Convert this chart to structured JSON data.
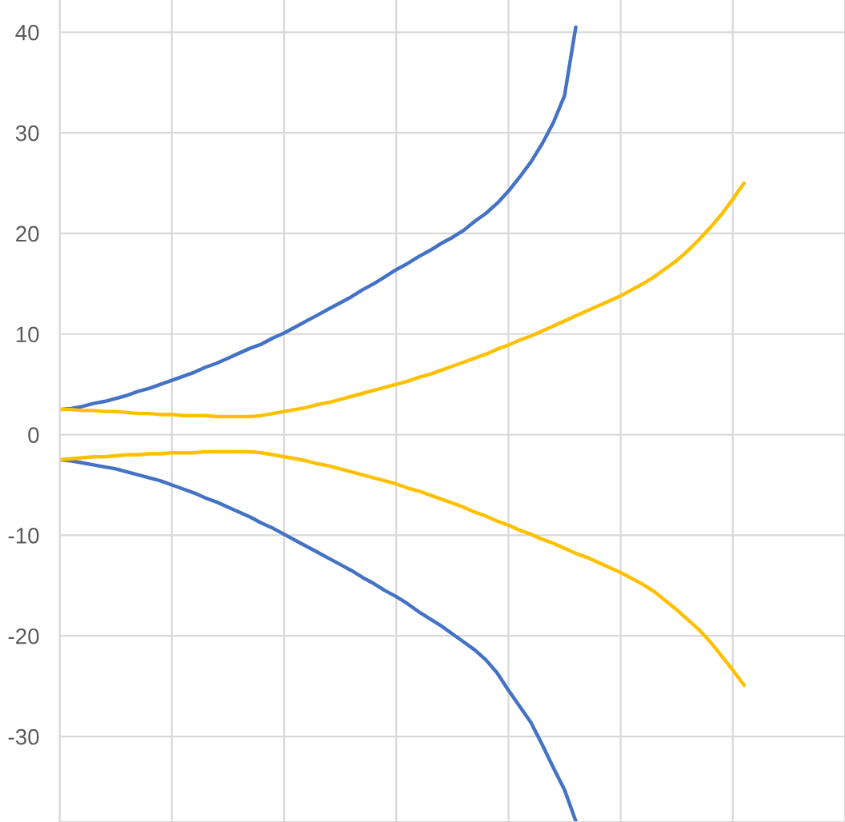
{
  "chart_data": {
    "type": "line",
    "categories": [
      null,
      null,
      null,
      null,
      null,
      null,
      null,
      null,
      null,
      null,
      null,
      null,
      null,
      null,
      null,
      null,
      null,
      null,
      null,
      null,
      null,
      null,
      null,
      null,
      null,
      null,
      null,
      null,
      null,
      null,
      null,
      null,
      null,
      null,
      null,
      null,
      null,
      null,
      null,
      null,
      null,
      null,
      null,
      null,
      null,
      null,
      null,
      null,
      null,
      null,
      null,
      null,
      null,
      null,
      null,
      null,
      null,
      null,
      null,
      null,
      null,
      null,
      null,
      null,
      null,
      null,
      null,
      null,
      null,
      null,
      null
    ],
    "series": [
      {
        "color": "#4472c4",
        "values": [
          2.5,
          2.6,
          2.8,
          3.1,
          3.3,
          3.6,
          3.9,
          4.3,
          4.6,
          5.0,
          5.4,
          5.8,
          6.2,
          6.7,
          7.1,
          7.6,
          8.1,
          8.6,
          9.0,
          9.6,
          10.1,
          10.7,
          11.3,
          11.9,
          12.5,
          13.1,
          13.7,
          14.4,
          15.0,
          15.7,
          16.4,
          17.0,
          17.7,
          18.3,
          19.0,
          19.6,
          20.3,
          21.2,
          22.0,
          23.0,
          24.2,
          25.6,
          27.1,
          28.9,
          31.0,
          33.7,
          40.5,
          null,
          null,
          null,
          null,
          null,
          null,
          null,
          null,
          null,
          null,
          null,
          null,
          null,
          null,
          null,
          null,
          null,
          null,
          null,
          null,
          null,
          null,
          null,
          null
        ]
      },
      {
        "color": "#4472c4",
        "values": [
          -2.5,
          -2.6,
          -2.8,
          -3.0,
          -3.2,
          -3.4,
          -3.7,
          -4.0,
          -4.3,
          -4.6,
          -5.0,
          -5.4,
          -5.8,
          -6.3,
          -6.7,
          -7.2,
          -7.7,
          -8.2,
          -8.8,
          -9.3,
          -9.9,
          -10.5,
          -11.1,
          -11.7,
          -12.3,
          -12.9,
          -13.5,
          -14.2,
          -14.8,
          -15.5,
          -16.1,
          -16.8,
          -17.6,
          -18.3,
          -19.0,
          -19.8,
          -20.6,
          -21.4,
          -22.4,
          -23.7,
          -25.4,
          -27.0,
          -28.6,
          -30.8,
          -33.1,
          -35.3,
          -38.4,
          null,
          null,
          null,
          null,
          null,
          null,
          null,
          null,
          null,
          null,
          null,
          null,
          null,
          null,
          null,
          null,
          null,
          null,
          null,
          null,
          null,
          null,
          null,
          null
        ]
      },
      {
        "color": "#ffc000",
        "values": [
          2.5,
          2.5,
          2.4,
          2.4,
          2.3,
          2.3,
          2.2,
          2.1,
          2.1,
          2.0,
          2.0,
          1.9,
          1.9,
          1.9,
          1.8,
          1.8,
          1.8,
          1.8,
          1.9,
          2.1,
          2.3,
          2.5,
          2.7,
          3.0,
          3.2,
          3.5,
          3.8,
          4.1,
          4.4,
          4.7,
          5.0,
          5.3,
          5.7,
          6.0,
          6.4,
          6.8,
          7.2,
          7.6,
          8.0,
          8.5,
          8.9,
          9.4,
          9.8,
          10.3,
          10.8,
          11.3,
          11.8,
          12.3,
          12.8,
          13.3,
          13.8,
          14.4,
          15.0,
          15.7,
          16.5,
          17.3,
          18.3,
          19.4,
          20.6,
          21.9,
          23.4,
          25.0,
          null,
          null,
          null,
          null,
          null,
          null,
          null,
          null,
          null
        ]
      },
      {
        "color": "#ffc000",
        "values": [
          -2.5,
          -2.4,
          -2.3,
          -2.2,
          -2.2,
          -2.1,
          -2.0,
          -2.0,
          -1.9,
          -1.9,
          -1.8,
          -1.8,
          -1.8,
          -1.7,
          -1.7,
          -1.7,
          -1.7,
          -1.7,
          -1.8,
          -2.0,
          -2.2,
          -2.4,
          -2.6,
          -2.9,
          -3.1,
          -3.4,
          -3.7,
          -4.0,
          -4.3,
          -4.6,
          -4.9,
          -5.3,
          -5.6,
          -6.0,
          -6.4,
          -6.8,
          -7.2,
          -7.7,
          -8.1,
          -8.6,
          -9.0,
          -9.5,
          -9.9,
          -10.4,
          -10.8,
          -11.3,
          -11.8,
          -12.2,
          -12.7,
          -13.2,
          -13.7,
          -14.3,
          -14.9,
          -15.6,
          -16.5,
          -17.4,
          -18.4,
          -19.4,
          -20.6,
          -22.0,
          -23.4,
          -24.9,
          null,
          null,
          null,
          null,
          null,
          null,
          null,
          null,
          null
        ]
      }
    ],
    "ylim": [
      -38.5,
      43.2
    ],
    "yticks": [
      -30,
      -20,
      -10,
      0,
      10,
      20,
      30,
      40
    ],
    "grid": true,
    "tick_labels": "y",
    "line_style": "solid"
  }
}
